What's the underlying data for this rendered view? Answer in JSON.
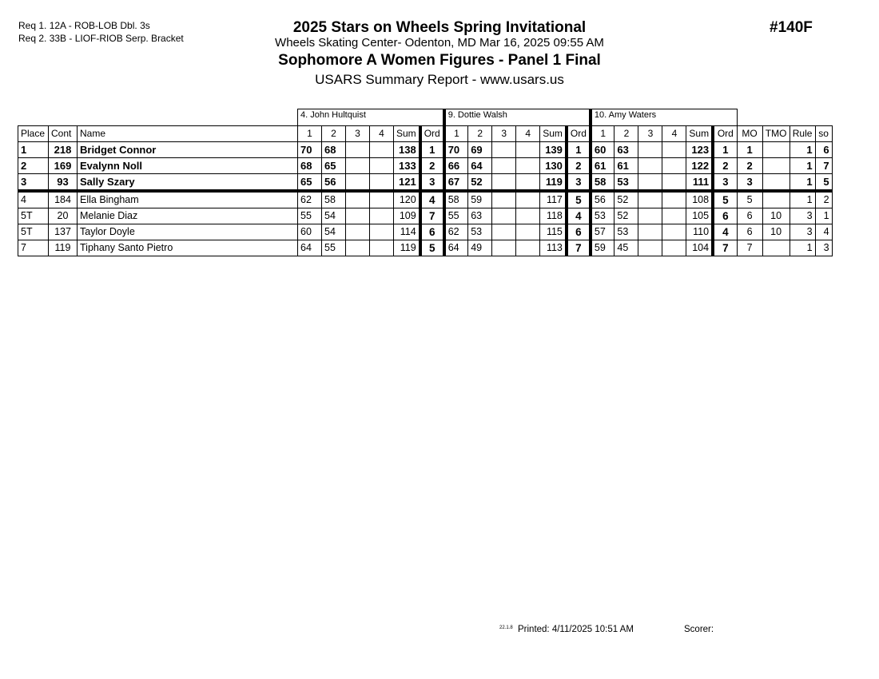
{
  "requirements": [
    "Req  1.  12A - ROB-LOB Dbl. 3s",
    "Req  2.  33B - LIOF-RIOB Serp. Bracket"
  ],
  "header": {
    "event": "2025 Stars on Wheels Spring Invitational",
    "event_number": "#140F",
    "location_date": "Wheels Skating Center- Odenton, MD  Mar 16, 2025  09:55 AM",
    "division": "Sophomore A Women Figures - Panel 1 Final",
    "report": "USARS Summary Report - www.usars.us"
  },
  "columns": {
    "place": "Place",
    "cont": "Cont",
    "name": "Name",
    "judge_cols": [
      "1",
      "2",
      "3",
      "4",
      "Sum",
      "Ord"
    ],
    "mo": "MO",
    "tmo": "TMO",
    "rule": "Rule",
    "so": "so"
  },
  "judges": [
    "4.  John Hultquist",
    "9.  Dottie Walsh",
    "10.  Amy Waters"
  ],
  "rows": [
    {
      "place": "1",
      "cont": "218",
      "name": "Bridget Connor",
      "scores": [
        [
          "70",
          "68",
          "",
          "",
          "138",
          "1"
        ],
        [
          "70",
          "69",
          "",
          "",
          "139",
          "1"
        ],
        [
          "60",
          "63",
          "",
          "",
          "123",
          "1"
        ]
      ],
      "mo": "1",
      "tmo": "",
      "rule": "1",
      "so": "6",
      "highlight": true
    },
    {
      "place": "2",
      "cont": "169",
      "name": "Evalynn Noll",
      "scores": [
        [
          "68",
          "65",
          "",
          "",
          "133",
          "2"
        ],
        [
          "66",
          "64",
          "",
          "",
          "130",
          "2"
        ],
        [
          "61",
          "61",
          "",
          "",
          "122",
          "2"
        ]
      ],
      "mo": "2",
      "tmo": "",
      "rule": "1",
      "so": "7",
      "highlight": true
    },
    {
      "place": "3",
      "cont": "93",
      "name": "Sally Szary",
      "scores": [
        [
          "65",
          "56",
          "",
          "",
          "121",
          "3"
        ],
        [
          "67",
          "52",
          "",
          "",
          "119",
          "3"
        ],
        [
          "58",
          "53",
          "",
          "",
          "111",
          "3"
        ]
      ],
      "mo": "3",
      "tmo": "",
      "rule": "1",
      "so": "5",
      "highlight": true
    },
    {
      "place": "4",
      "cont": "184",
      "name": "Ella Bingham",
      "scores": [
        [
          "62",
          "58",
          "",
          "",
          "120",
          "4"
        ],
        [
          "58",
          "59",
          "",
          "",
          "117",
          "5"
        ],
        [
          "56",
          "52",
          "",
          "",
          "108",
          "5"
        ]
      ],
      "mo": "5",
      "tmo": "",
      "rule": "1",
      "so": "2",
      "highlight": false
    },
    {
      "place": "5T",
      "cont": "20",
      "name": "Melanie Diaz",
      "scores": [
        [
          "55",
          "54",
          "",
          "",
          "109",
          "7"
        ],
        [
          "55",
          "63",
          "",
          "",
          "118",
          "4"
        ],
        [
          "53",
          "52",
          "",
          "",
          "105",
          "6"
        ]
      ],
      "mo": "6",
      "tmo": "10",
      "rule": "3",
      "so": "1",
      "highlight": false
    },
    {
      "place": "5T",
      "cont": "137",
      "name": "Taylor Doyle",
      "scores": [
        [
          "60",
          "54",
          "",
          "",
          "114",
          "6"
        ],
        [
          "62",
          "53",
          "",
          "",
          "115",
          "6"
        ],
        [
          "57",
          "53",
          "",
          "",
          "110",
          "4"
        ]
      ],
      "mo": "6",
      "tmo": "10",
      "rule": "3",
      "so": "4",
      "highlight": false
    },
    {
      "place": "7",
      "cont": "119",
      "name": "Tiphany Santo Pietro",
      "scores": [
        [
          "64",
          "55",
          "",
          "",
          "119",
          "5"
        ],
        [
          "64",
          "49",
          "",
          "",
          "113",
          "7"
        ],
        [
          "59",
          "45",
          "",
          "",
          "104",
          "7"
        ]
      ],
      "mo": "7",
      "tmo": "",
      "rule": "1",
      "so": "3",
      "highlight": false
    }
  ],
  "footer": {
    "version": "22.1.8",
    "printed": "Printed:  4/11/2025  10:51 AM",
    "scorer": "Scorer:"
  }
}
